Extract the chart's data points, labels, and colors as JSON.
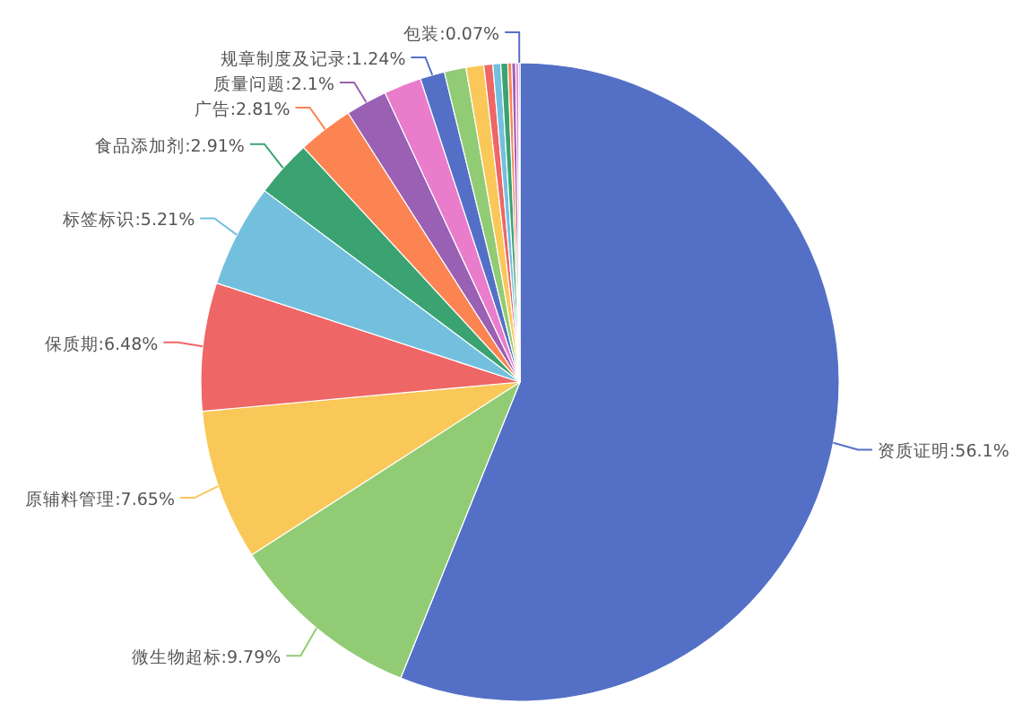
{
  "chart_data": {
    "type": "pie",
    "categories": [
      "资质证明",
      "微生物超标",
      "原辅料管理",
      "保质期",
      "标签标识",
      "食品添加剂",
      "广告",
      "质量问题",
      null,
      "规章制度及记录",
      null,
      null,
      null,
      null,
      null,
      null,
      null,
      null,
      "包装"
    ],
    "values": [
      56.1,
      9.79,
      7.65,
      6.48,
      5.21,
      2.91,
      2.81,
      2.1,
      1.9,
      1.24,
      1.1,
      0.9,
      0.45,
      0.4,
      0.35,
      0.2,
      0.2,
      0.14,
      0.07
    ],
    "value_labels": [
      "56.1%",
      "9.79%",
      "7.65%",
      "6.48%",
      "5.21%",
      "2.91%",
      "2.81%",
      "2.1%",
      null,
      "1.24%",
      null,
      null,
      null,
      null,
      null,
      null,
      null,
      null,
      "0.07%"
    ],
    "colors": [
      "#5470c6",
      "#91cc75",
      "#fac858",
      "#ee6666",
      "#73c0de",
      "#3ba272",
      "#fc8452",
      "#9a60b4",
      "#ea7ccc",
      "#5470c6",
      "#91cc75",
      "#fac858",
      "#ee6666",
      "#73c0de",
      "#3ba272",
      "#fc8452",
      "#9a60b4",
      "#ea7ccc",
      "#5470c6"
    ]
  }
}
